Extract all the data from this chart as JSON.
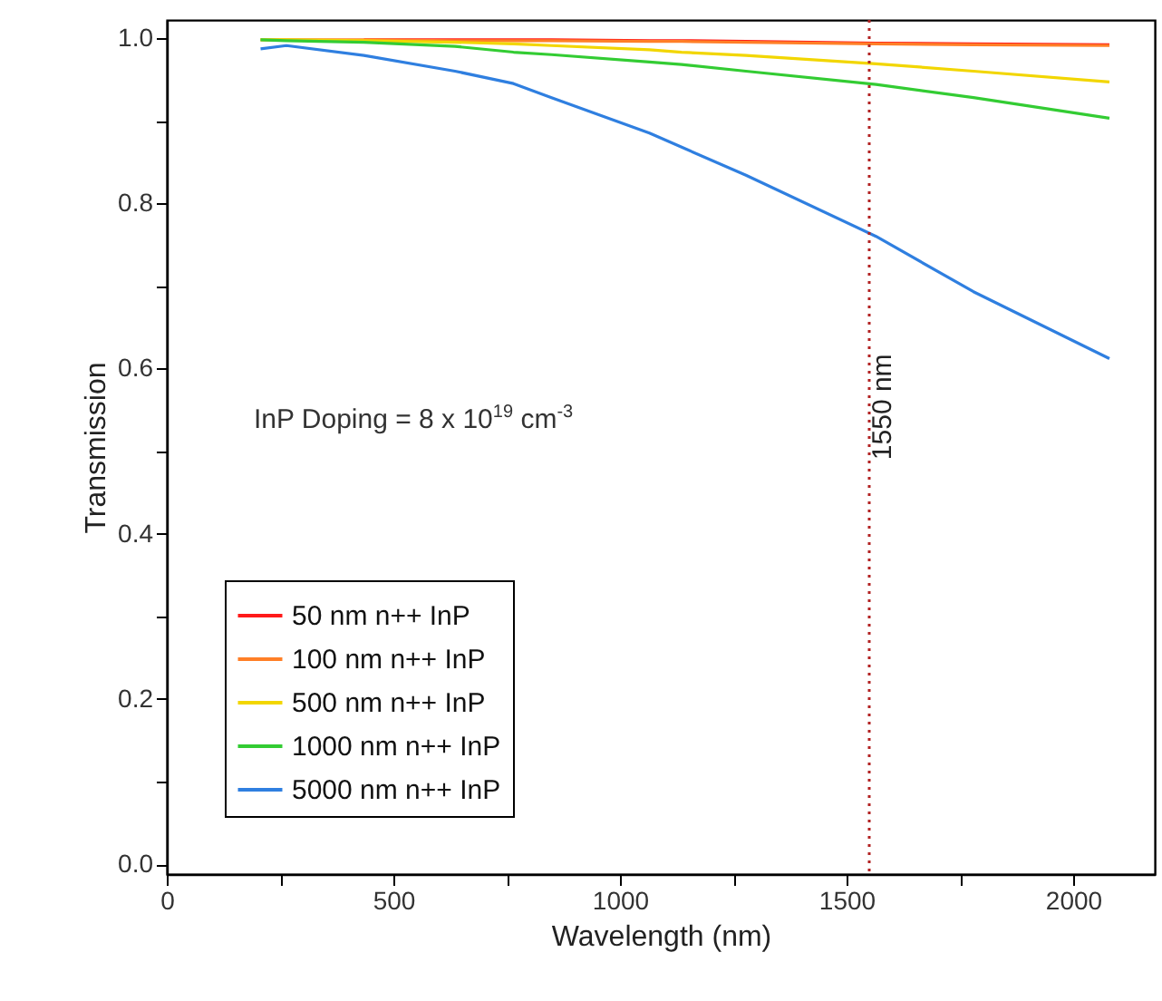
{
  "chart_data": {
    "type": "line",
    "xlabel": "Wavelength (nm)",
    "ylabel": "Transmission",
    "annotations": [
      "InP Doping = 8 x 10$^{19}$ cm$^{-3}$"
    ],
    "x": [
      207,
      264,
      435,
      636,
      765,
      849,
      1065,
      1136,
      1278,
      1565,
      1780,
      2080
    ],
    "series": [
      {
        "name": "50 nm n++ InP",
        "color": "#ff1a1a",
        "values": [
          null,
          null,
          0.998,
          0.998,
          0.998,
          0.998,
          0.997,
          0.997,
          0.996,
          0.994,
          0.993,
          0.992
        ]
      },
      {
        "name": "100 nm n++ InP",
        "color": "#ff7f27",
        "values": [
          0.998,
          0.998,
          0.998,
          0.997,
          0.997,
          0.997,
          0.996,
          0.996,
          0.995,
          0.993,
          0.992,
          0.991
        ]
      },
      {
        "name": "500 nm n++ InP",
        "color": "#f2d600",
        "values": [
          0.998,
          0.998,
          0.997,
          0.995,
          0.993,
          0.991,
          0.986,
          0.983,
          0.979,
          0.969,
          0.96,
          0.947
        ]
      },
      {
        "name": "1000 nm n++ InP",
        "color": "#33cc33",
        "values": [
          0.998,
          0.997,
          0.995,
          0.99,
          0.983,
          0.98,
          0.971,
          0.968,
          0.96,
          0.944,
          0.928,
          0.903
        ]
      },
      {
        "name": "5000 nm n++ InP",
        "color": "#2f7fe0",
        "values": [
          0.987,
          0.991,
          0.979,
          0.96,
          0.945,
          0.928,
          0.885,
          0.868,
          0.834,
          0.76,
          0.693,
          0.612
        ]
      }
    ],
    "xlim": [
      0,
      2180
    ],
    "ylim": [
      -0.012,
      1.022
    ],
    "xticks": [
      0,
      {
        "value": 250,
        "label": null
      },
      500,
      {
        "value": 750,
        "label": null
      },
      1000,
      {
        "value": 1250,
        "label": null
      },
      1500,
      {
        "value": 1750,
        "label": null
      },
      2000
    ],
    "yticks": [
      {
        "value": 0,
        "label": "0.0"
      },
      {
        "value": 0.1,
        "label": null
      },
      0.2,
      {
        "value": 0.3,
        "label": null
      },
      0.4,
      {
        "value": 0.5,
        "label": null
      },
      0.6,
      {
        "value": 0.7,
        "label": null
      },
      0.8,
      {
        "value": 0.9,
        "label": null
      },
      {
        "value": 1,
        "label": "1.0"
      }
    ],
    "ref_lines": [
      {
        "axis": "x",
        "value": 1550,
        "label": "1550 nm",
        "color": "#b22222",
        "line_style": "dotted"
      }
    ],
    "legend": "bottom left",
    "grid": false,
    "marker": "none",
    "line_style": "solid"
  }
}
